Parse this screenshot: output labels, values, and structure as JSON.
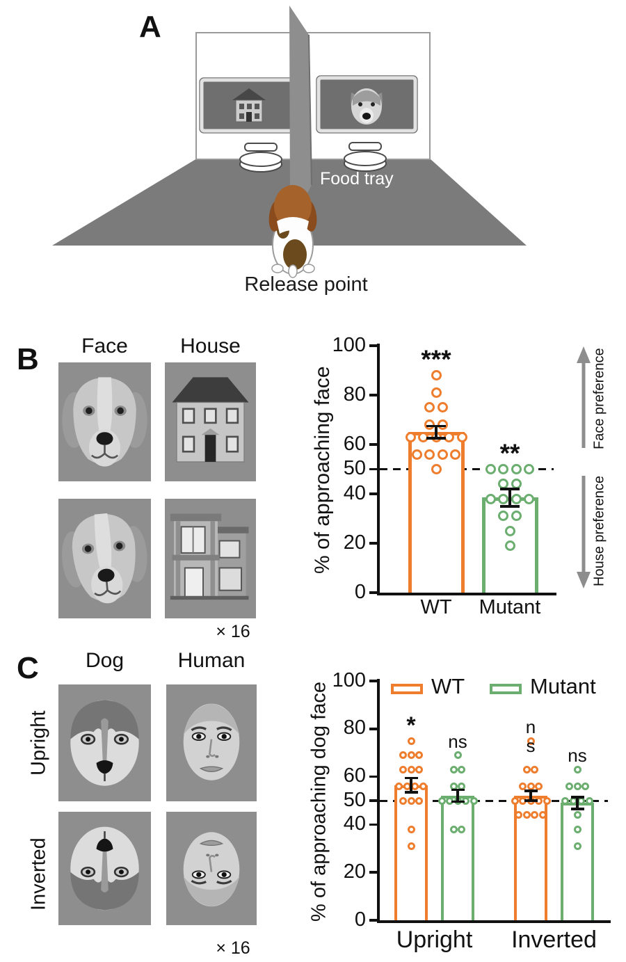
{
  "panelA": {
    "label": "A",
    "food_tray_label": "Food tray",
    "release_point_label": "Release point"
  },
  "panelB": {
    "label": "B",
    "column_headers": [
      "Face",
      "House"
    ],
    "multiplier_label": "× 16"
  },
  "panelC": {
    "label": "C",
    "column_headers": [
      "Dog",
      "Human"
    ],
    "row_headers": [
      "Upright",
      "Inverted"
    ],
    "multiplier_label": "× 16"
  },
  "colors": {
    "wt": "#ee7d2e",
    "mutant": "#6bae70",
    "axis": "#111111",
    "arrow_gray": "#8d8d8d",
    "stimulus_background": "#8e8e8e"
  },
  "chart_data": [
    {
      "id": "faceVsHouse",
      "type": "bar",
      "ylabel": "% of approaching face",
      "ylim": [
        0,
        100
      ],
      "yticks": [
        0,
        20,
        40,
        50,
        60,
        80,
        100
      ],
      "reference_line": 50,
      "grid": false,
      "bars": [
        {
          "label": "WT",
          "color": "#ee7d2e",
          "mean": 65,
          "sem": 2.5,
          "sig": "***",
          "points": [
            88,
            81,
            75,
            75,
            68,
            68,
            63,
            63,
            63,
            63,
            63,
            56,
            56,
            56,
            56,
            50
          ]
        },
        {
          "label": "Mutant",
          "color": "#6bae70",
          "mean": 38.5,
          "sem": 3.5,
          "sig": "**",
          "points": [
            50,
            50,
            50,
            50,
            44,
            44,
            38,
            38,
            38,
            38,
            31,
            31,
            25,
            19
          ]
        }
      ],
      "right_annotations": [
        {
          "text": "Face preference",
          "direction": "up"
        },
        {
          "text": "House preference",
          "direction": "down"
        }
      ]
    },
    {
      "id": "uprightVsInverted",
      "type": "grouped_bar",
      "ylabel": "% of approaching dog face",
      "ylim": [
        0,
        100
      ],
      "yticks": [
        0,
        20,
        40,
        50,
        60,
        80,
        100
      ],
      "reference_line": 50,
      "grid": false,
      "legend": [
        "WT",
        "Mutant"
      ],
      "groups": [
        "Upright",
        "Inverted"
      ],
      "bars": [
        {
          "group": "Upright",
          "series": "WT",
          "color": "#ee7d2e",
          "mean": 56.5,
          "sem": 3,
          "sig": "*",
          "points": [
            75,
            69,
            69,
            69,
            63,
            63,
            63,
            56,
            56,
            56,
            56,
            50,
            50,
            50,
            38,
            31
          ]
        },
        {
          "group": "Upright",
          "series": "Mutant",
          "color": "#6bae70",
          "mean": 52,
          "sem": 2.5,
          "sig": "ns",
          "points": [
            69,
            63,
            63,
            56,
            56,
            50,
            50,
            50,
            50,
            50,
            38,
            38
          ]
        },
        {
          "group": "Inverted",
          "series": "WT",
          "color": "#ee7d2e",
          "mean": 52,
          "sem": 2,
          "sig": "ns",
          "sig_wrapped": true,
          "points": [
            75,
            63,
            63,
            56,
            56,
            56,
            50,
            50,
            50,
            50,
            50,
            44,
            44,
            44,
            44
          ]
        },
        {
          "group": "Inverted",
          "series": "Mutant",
          "color": "#6bae70",
          "mean": 49,
          "sem": 2.5,
          "sig": "ns",
          "points": [
            63,
            56,
            56,
            56,
            50,
            50,
            50,
            50,
            44,
            38,
            31
          ]
        }
      ]
    }
  ]
}
